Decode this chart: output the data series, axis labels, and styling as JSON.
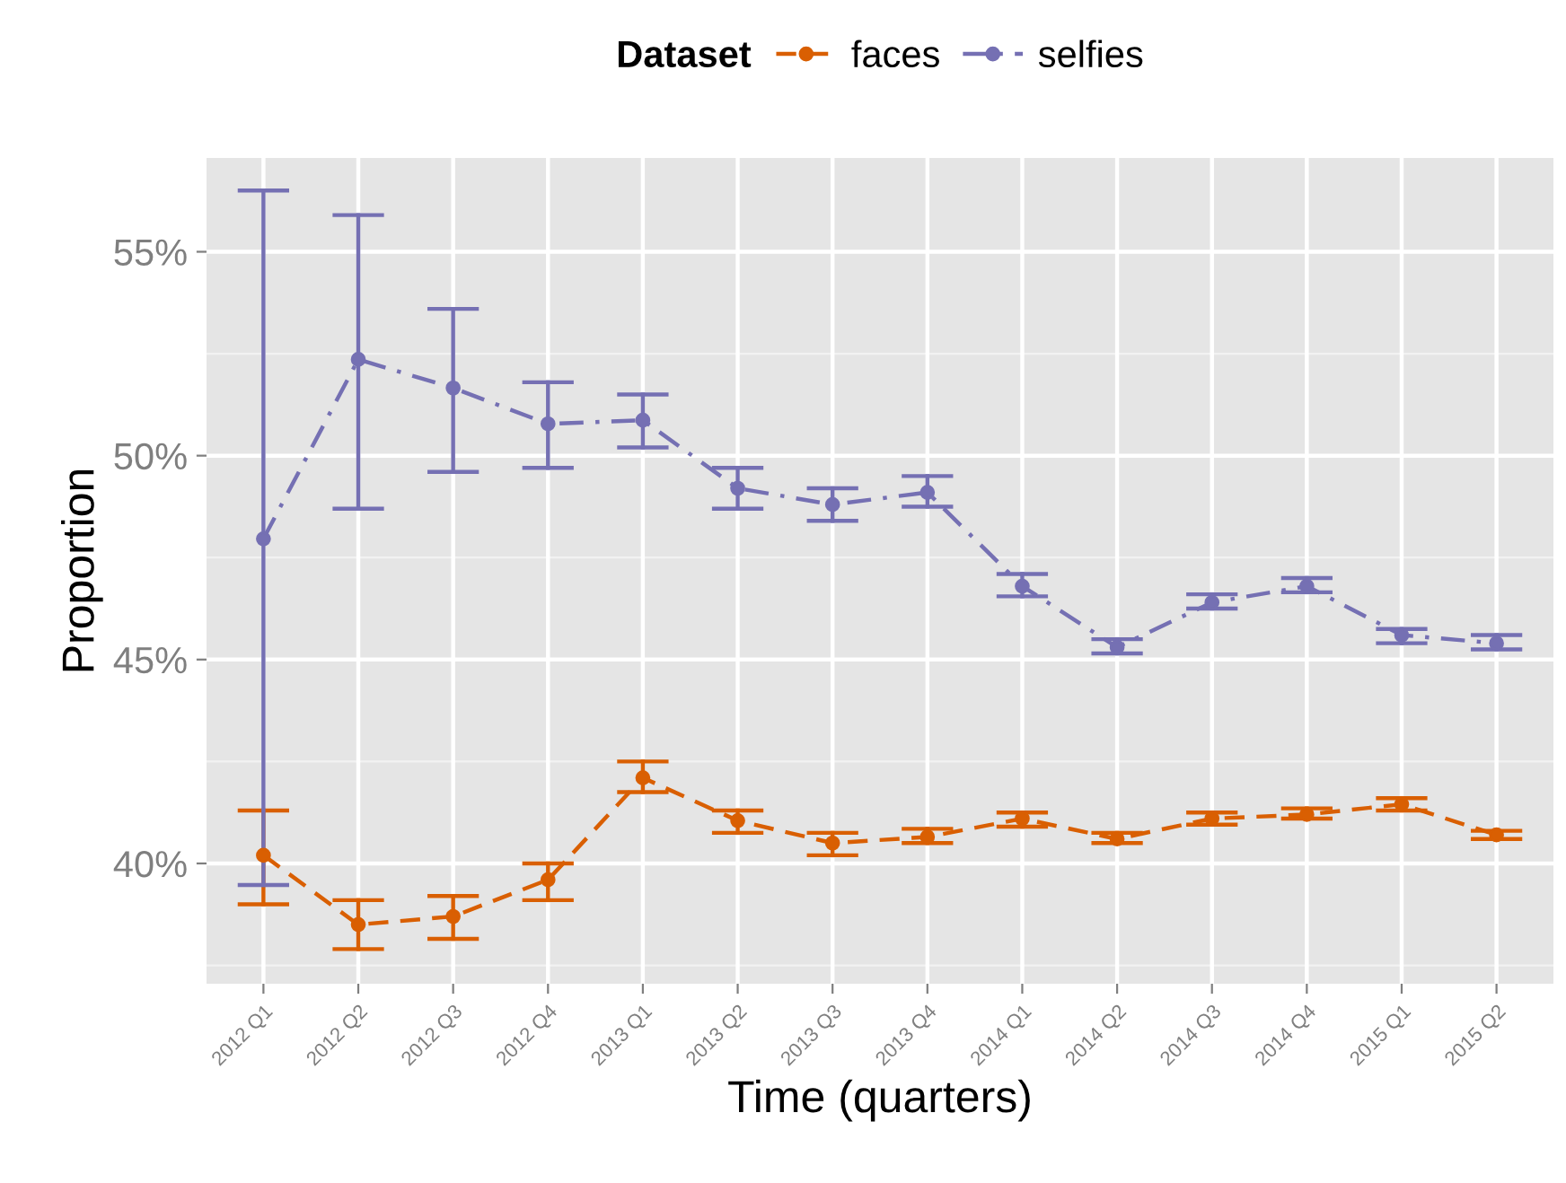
{
  "chart_data": {
    "type": "line",
    "xlabel": "Time (quarters)",
    "ylabel": "Proportion",
    "legend_title": "Dataset",
    "legend": "top",
    "grid": true,
    "marker": "circle",
    "categories": [
      "2012 Q1",
      "2012 Q2",
      "2012 Q3",
      "2012 Q4",
      "2013 Q1",
      "2013 Q2",
      "2013 Q3",
      "2013 Q4",
      "2014 Q1",
      "2014 Q2",
      "2014 Q3",
      "2014 Q4",
      "2015 Q1",
      "2015 Q2"
    ],
    "ylim": [
      37.05,
      57.3
    ],
    "yticks": [
      {
        "value": 40,
        "label": "40%"
      },
      {
        "value": 45,
        "label": "45%"
      },
      {
        "value": 50,
        "label": "50%"
      },
      {
        "value": 55,
        "label": "55%"
      }
    ],
    "series": [
      {
        "name": "faces",
        "color": "#d95f02",
        "line_style": "dashed",
        "values": [
          40.2,
          38.5,
          38.7,
          39.6,
          42.1,
          41.05,
          40.5,
          40.65,
          41.1,
          40.6,
          41.1,
          41.2,
          41.45,
          40.7
        ],
        "errors": [
          [
            39.0,
            41.3
          ],
          [
            37.9,
            39.1
          ],
          [
            38.15,
            39.2
          ],
          [
            39.1,
            40.0
          ],
          [
            41.75,
            42.5
          ],
          [
            40.75,
            41.3
          ],
          [
            40.2,
            40.75
          ],
          [
            40.5,
            40.85
          ],
          [
            40.9,
            41.25
          ],
          [
            40.5,
            40.75
          ],
          [
            40.95,
            41.25
          ],
          [
            41.1,
            41.35
          ],
          [
            41.3,
            41.6
          ],
          [
            40.6,
            40.8
          ]
        ]
      },
      {
        "name": "selfies",
        "color": "#7570b3",
        "line_style": "dashdot",
        "values": [
          47.96,
          52.36,
          51.66,
          50.78,
          50.87,
          49.2,
          48.8,
          49.1,
          46.8,
          45.3,
          46.4,
          46.8,
          45.6,
          45.4
        ],
        "errors": [
          [
            39.47,
            56.5
          ],
          [
            48.7,
            55.9
          ],
          [
            49.6,
            53.6
          ],
          [
            49.7,
            51.8
          ],
          [
            50.2,
            51.5
          ],
          [
            48.7,
            49.7
          ],
          [
            48.4,
            49.2
          ],
          [
            48.75,
            49.5
          ],
          [
            46.55,
            47.1
          ],
          [
            45.15,
            45.5
          ],
          [
            46.25,
            46.6
          ],
          [
            46.65,
            47.0
          ],
          [
            45.4,
            45.75
          ],
          [
            45.25,
            45.6
          ]
        ]
      }
    ]
  }
}
